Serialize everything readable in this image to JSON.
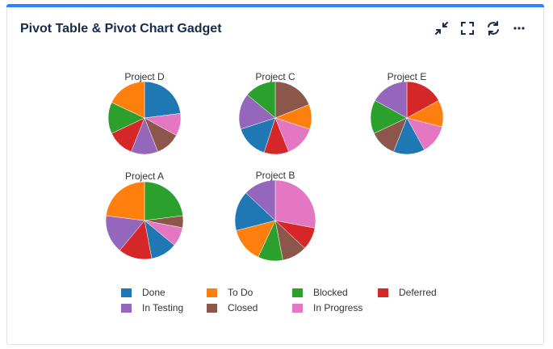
{
  "gadget": {
    "title": "Pivot Table & Pivot Chart Gadget",
    "accent": "#2684ff",
    "actions": [
      "minimize-icon",
      "fullscreen-icon",
      "refresh-icon",
      "more-icon"
    ]
  },
  "chart_data": {
    "type": "pie",
    "categories": [
      "Done",
      "To Do",
      "Blocked",
      "Deferred",
      "In Testing",
      "Closed",
      "In Progress"
    ],
    "colors": {
      "Done": "#1f77b4",
      "To Do": "#ff7f0e",
      "Blocked": "#2ca02c",
      "Deferred": "#d62728",
      "In Testing": "#9467bd",
      "Closed": "#8c564b",
      "In Progress": "#e377c2"
    },
    "charts": [
      {
        "title": "Project D",
        "slices": [
          {
            "label": "Done",
            "value": 23
          },
          {
            "label": "In Progress",
            "value": 10
          },
          {
            "label": "Closed",
            "value": 11
          },
          {
            "label": "In Testing",
            "value": 12
          },
          {
            "label": "Deferred",
            "value": 12
          },
          {
            "label": "Blocked",
            "value": 14
          },
          {
            "label": "To Do",
            "value": 18
          }
        ]
      },
      {
        "title": "Project C",
        "slices": [
          {
            "label": "Closed",
            "value": 19
          },
          {
            "label": "To Do",
            "value": 11
          },
          {
            "label": "In Progress",
            "value": 14
          },
          {
            "label": "Deferred",
            "value": 11
          },
          {
            "label": "Done",
            "value": 15
          },
          {
            "label": "In Testing",
            "value": 16
          },
          {
            "label": "Blocked",
            "value": 14
          }
        ]
      },
      {
        "title": "Project E",
        "slices": [
          {
            "label": "Deferred",
            "value": 17
          },
          {
            "label": "To Do",
            "value": 12
          },
          {
            "label": "In Progress",
            "value": 13
          },
          {
            "label": "Done",
            "value": 14
          },
          {
            "label": "Closed",
            "value": 12
          },
          {
            "label": "Blocked",
            "value": 15
          },
          {
            "label": "In Testing",
            "value": 17
          }
        ]
      },
      {
        "title": "Project A",
        "slices": [
          {
            "label": "Blocked",
            "value": 23
          },
          {
            "label": "Closed",
            "value": 5
          },
          {
            "label": "In Progress",
            "value": 8
          },
          {
            "label": "Done",
            "value": 11
          },
          {
            "label": "Deferred",
            "value": 14
          },
          {
            "label": "In Testing",
            "value": 16
          },
          {
            "label": "To Do",
            "value": 23
          }
        ]
      },
      {
        "title": "Project B",
        "slices": [
          {
            "label": "In Progress",
            "value": 28
          },
          {
            "label": "Deferred",
            "value": 9
          },
          {
            "label": "Closed",
            "value": 10
          },
          {
            "label": "Blocked",
            "value": 10
          },
          {
            "label": "To Do",
            "value": 14
          },
          {
            "label": "Done",
            "value": 16
          },
          {
            "label": "In Testing",
            "value": 13
          }
        ]
      }
    ],
    "legend": [
      "Done",
      "To Do",
      "Blocked",
      "Deferred",
      "In Testing",
      "Closed",
      "In Progress"
    ],
    "legend_position": "bottom"
  }
}
